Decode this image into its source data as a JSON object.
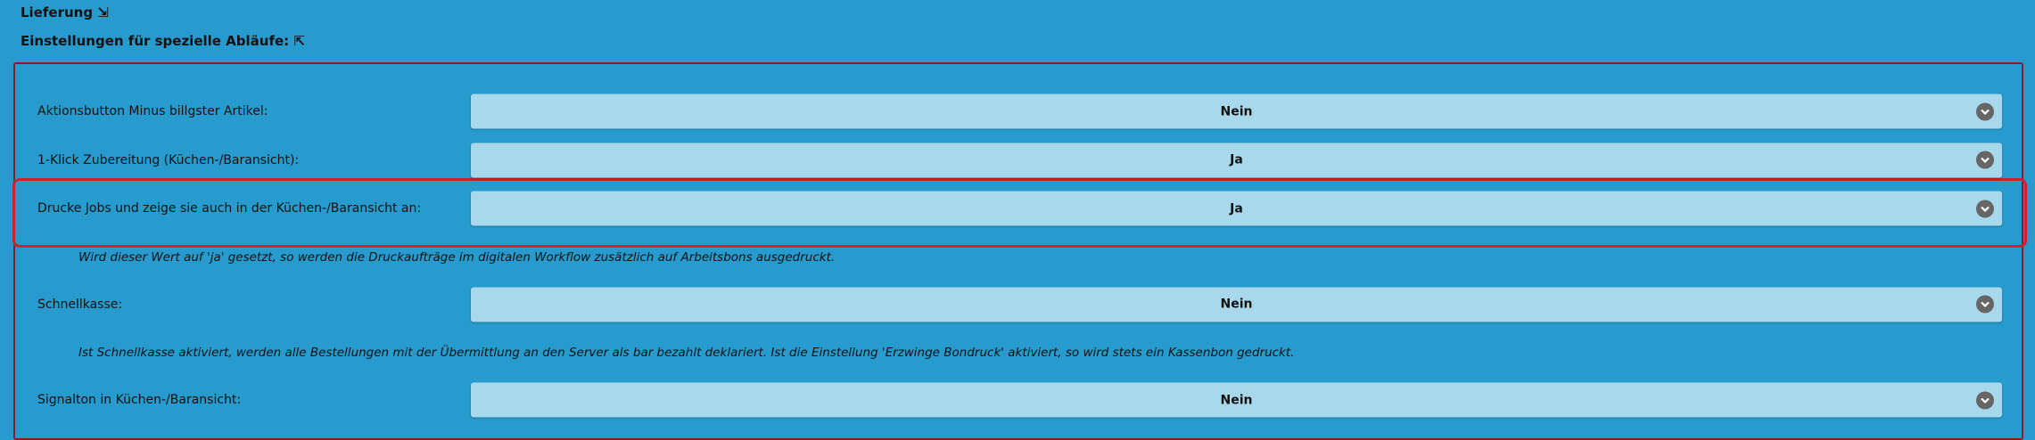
{
  "header": {
    "title": "Lieferung ⇲",
    "section": "Einstellungen für spezielle Abläufe: ⇱"
  },
  "settings": [
    {
      "label": "Aktionsbutton Minus billgster Artikel:",
      "value": "Nein"
    },
    {
      "label": "1-Klick Zubereitung (Küchen-/Baransicht):",
      "value": "Ja"
    },
    {
      "label": "Drucke Jobs und zeige sie auch in der Küchen-/Baransicht an:",
      "value": "Ja",
      "note": "Wird dieser Wert auf 'ja' gesetzt, so werden die Druckaufträge im digitalen Workflow zusätzlich auf Arbeitsbons ausgedruckt."
    },
    {
      "label": "Schnellkasse:",
      "value": "Nein",
      "note": "Ist Schnellkasse aktiviert, werden alle Bestellungen mit der Übermittlung an den Server als bar bezahlt deklariert. Ist die Einstellung 'Erzwinge Bondruck' aktiviert, so wird stets ein Kassenbon gedruckt."
    },
    {
      "label": "Signalton in Küchen-/Baransicht:",
      "value": "Nein"
    }
  ]
}
